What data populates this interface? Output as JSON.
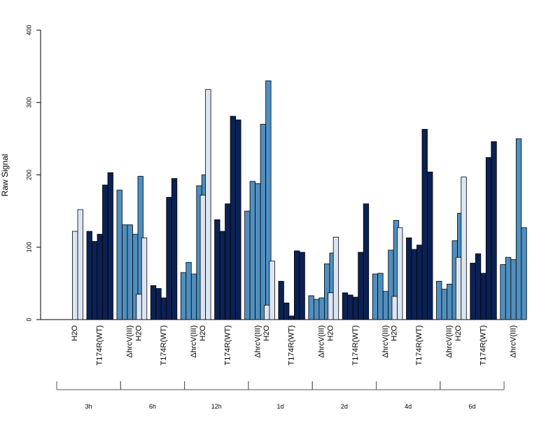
{
  "chart_data": {
    "type": "bar",
    "title": "",
    "xlabel": "",
    "ylabel": "Raw Signal",
    "ylim": [
      0,
      400
    ],
    "yticks": [
      "0",
      "100",
      "200",
      "300",
      "400"
    ],
    "grid": false,
    "legend": "none",
    "treatments": [
      {
        "label": "H2O",
        "color": "#dce6f2"
      },
      {
        "label": "T174R(WT)",
        "color": "#0b2154"
      },
      {
        "label": "ΔhrcV(III)",
        "color": "#4f8fc0"
      }
    ],
    "groups": [
      {
        "label": "3h",
        "values": [
          [
            0,
            122,
            152
          ],
          [
            122,
            108,
            118,
            186,
            203
          ],
          [
            179,
            131,
            131,
            118,
            198
          ]
        ]
      },
      {
        "label": "6h",
        "values": [
          [
            0,
            35,
            113
          ],
          [
            47,
            43,
            30,
            169,
            195
          ],
          [
            65,
            79,
            63,
            185,
            200
          ]
        ]
      },
      {
        "label": "12h",
        "values": [
          [
            0,
            172,
            318
          ],
          [
            138,
            122,
            160,
            281,
            276
          ],
          [
            150,
            191,
            188,
            270,
            330
          ]
        ]
      },
      {
        "label": "1d",
        "values": [
          [
            0,
            20,
            81
          ],
          [
            53,
            23,
            5,
            95,
            93
          ],
          [
            33,
            28,
            30,
            77,
            92
          ]
        ]
      },
      {
        "label": "2d",
        "values": [
          [
            0,
            37,
            114
          ],
          [
            37,
            34,
            31,
            93,
            160
          ],
          [
            63,
            64,
            39,
            96,
            137
          ]
        ]
      },
      {
        "label": "4d",
        "values": [
          [
            0,
            32,
            127
          ],
          [
            113,
            97,
            103,
            263,
            204
          ],
          [
            53,
            42,
            49,
            109,
            147
          ]
        ]
      },
      {
        "label": "6d",
        "values": [
          [
            0,
            86,
            197
          ],
          [
            78,
            91,
            64,
            224,
            246
          ],
          [
            76,
            86,
            83,
            250,
            127
          ]
        ]
      }
    ]
  }
}
